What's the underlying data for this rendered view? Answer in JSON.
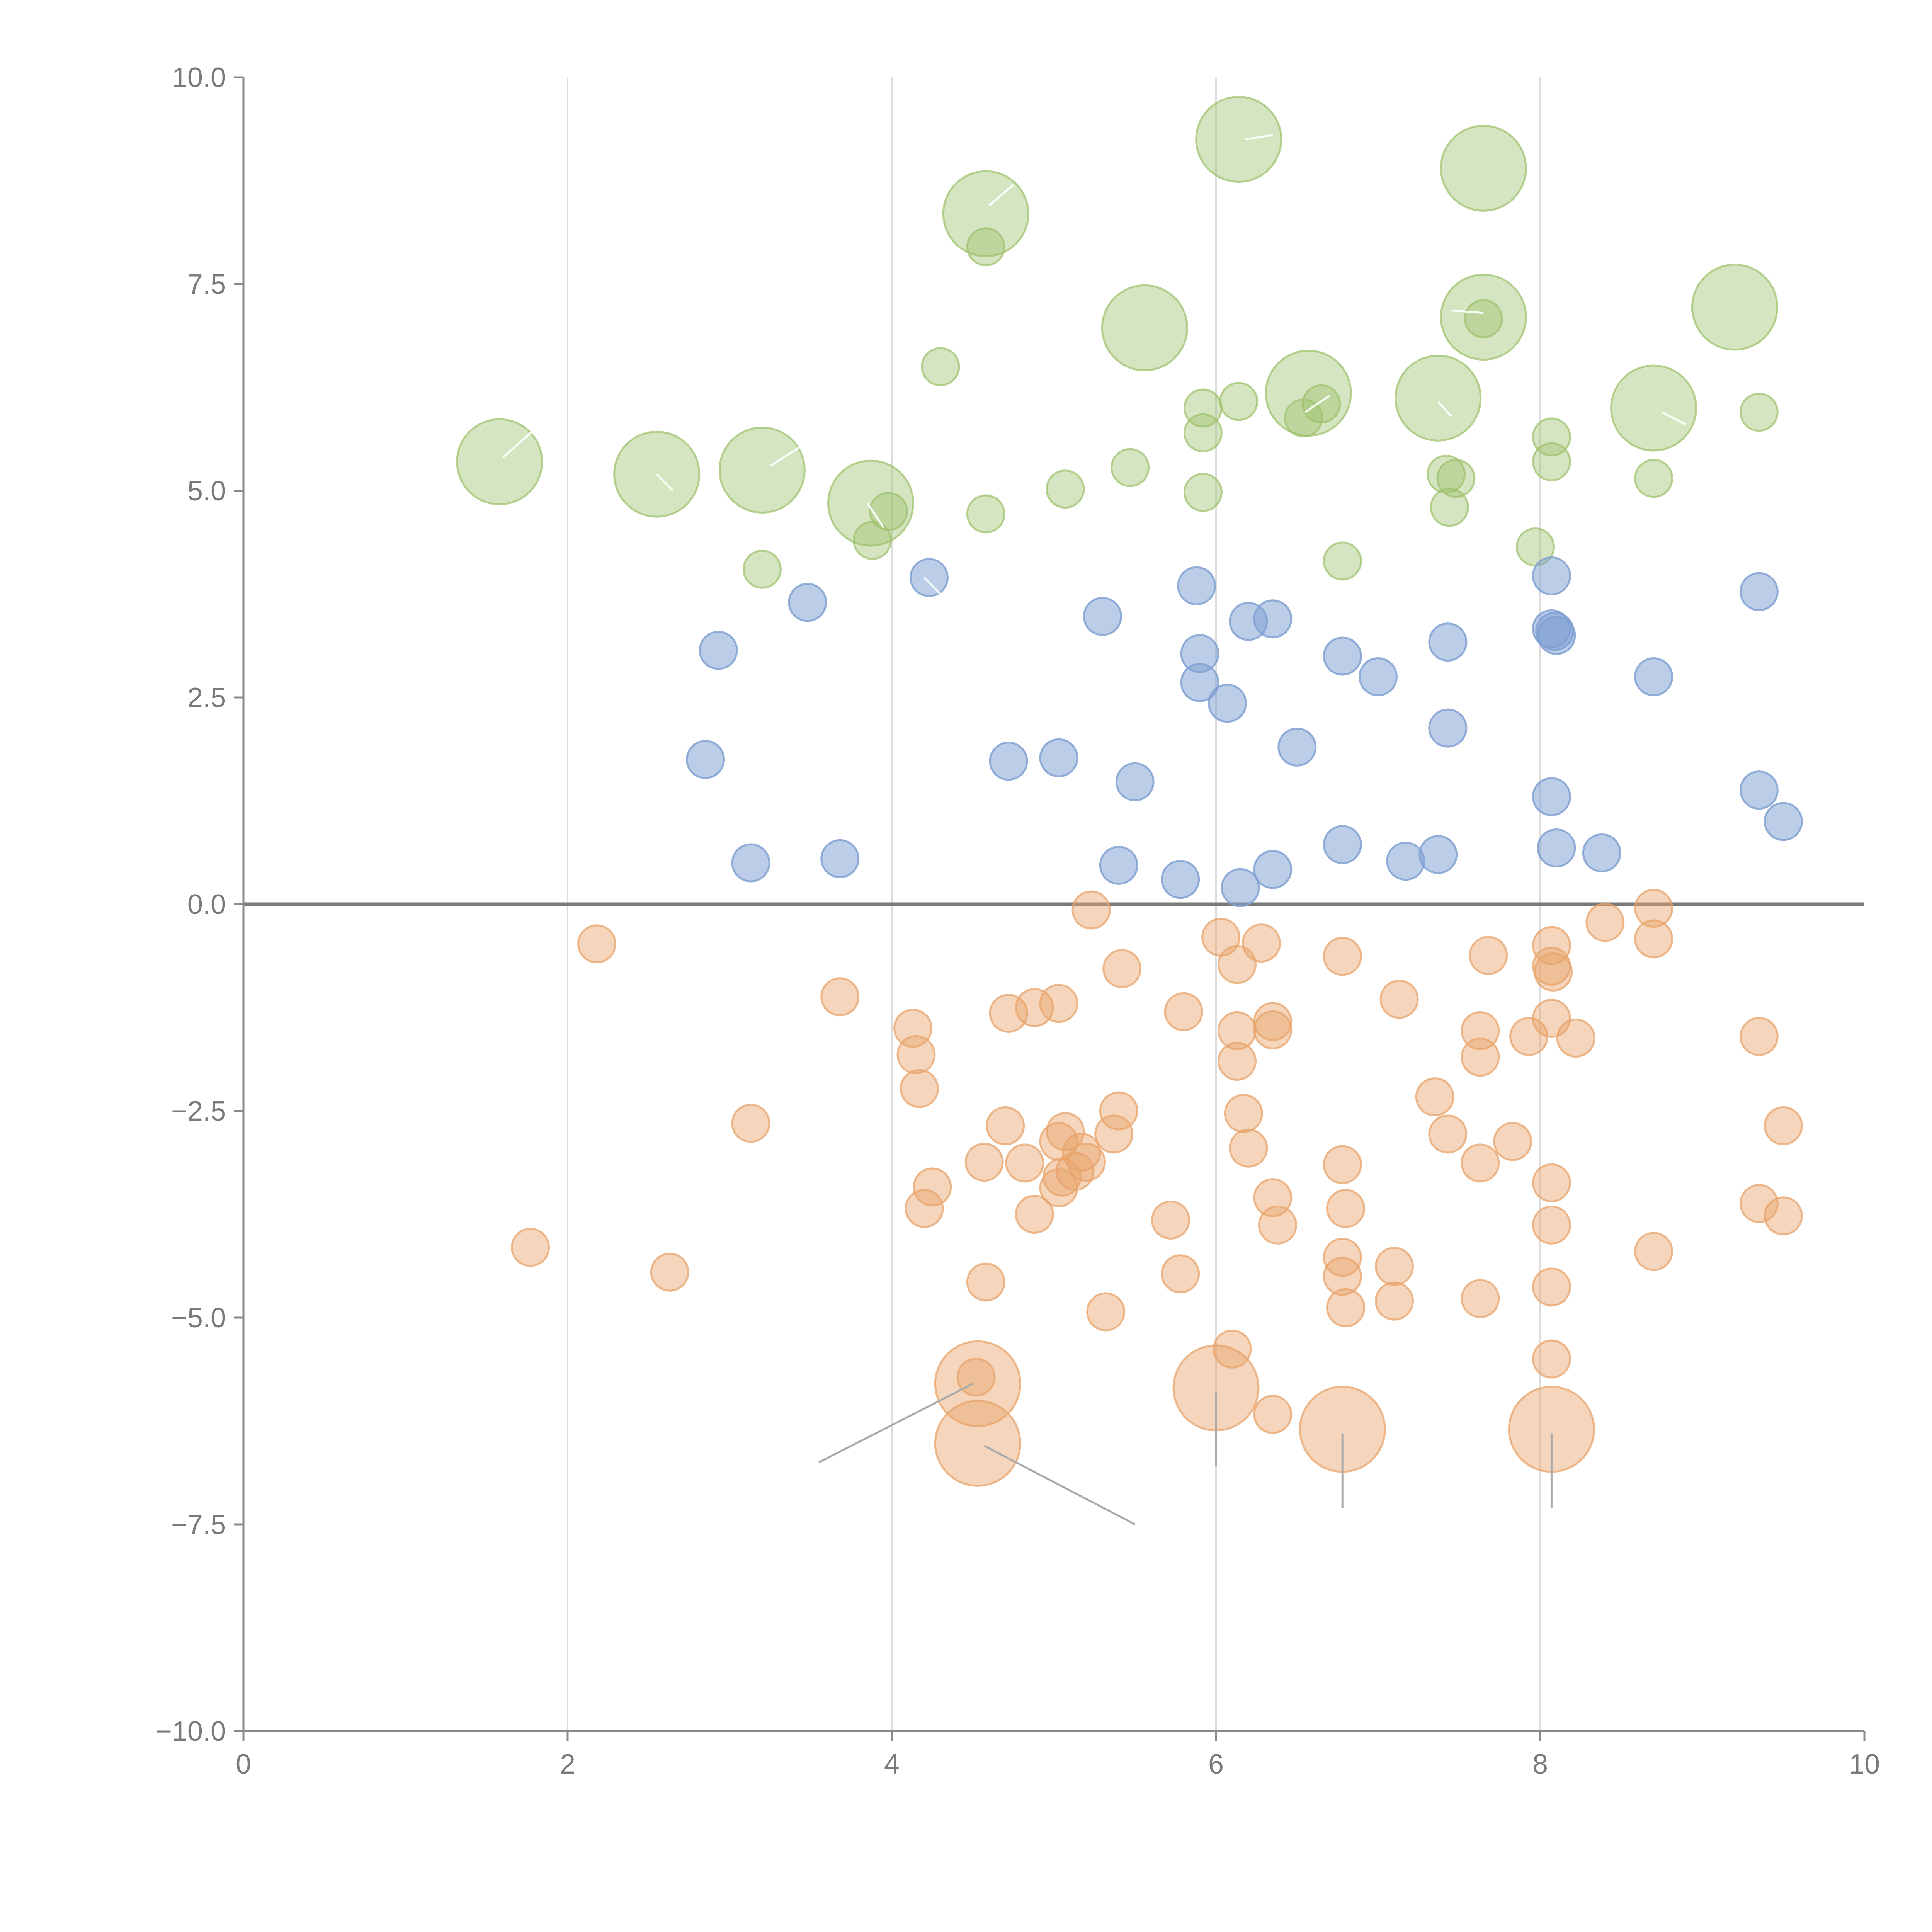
{
  "chart_data": {
    "type": "scatter",
    "title": "",
    "xlabel": "",
    "ylabel": "",
    "xlim": [
      0,
      10
    ],
    "ylim": [
      -10,
      10
    ],
    "x_ticks": [
      0,
      2,
      4,
      6,
      8,
      10
    ],
    "x_tick_labels": [
      "0",
      "2",
      "4",
      "6",
      "8",
      "10"
    ],
    "y_ticks": [
      10,
      7.5,
      5,
      2.5,
      0,
      -2.5,
      -5,
      -7.5,
      -10
    ],
    "y_tick_labels": [
      "10.0",
      "7.5",
      "5.0",
      "2.5",
      "0.0",
      "−2.5",
      "−5.0",
      "−7.5",
      "−10.0"
    ],
    "vertical_grid_at": [
      2,
      4,
      6,
      8
    ],
    "reference_line_y": 0,
    "series": [
      {
        "name": "green",
        "color": "#9dc16b",
        "opacity": 0.42,
        "points": [
          {
            "x": 1.58,
            "y": 5.35,
            "size": "large"
          },
          {
            "x": 2.55,
            "y": 5.2,
            "size": "large"
          },
          {
            "x": 3.2,
            "y": 5.25,
            "size": "large"
          },
          {
            "x": 3.2,
            "y": 4.05,
            "size": "small"
          },
          {
            "x": 3.87,
            "y": 4.85,
            "size": "large"
          },
          {
            "x": 3.88,
            "y": 4.4,
            "size": "small"
          },
          {
            "x": 3.98,
            "y": 4.75,
            "size": "small"
          },
          {
            "x": 4.3,
            "y": 6.5,
            "size": "small"
          },
          {
            "x": 4.58,
            "y": 8.35,
            "size": "large"
          },
          {
            "x": 4.58,
            "y": 7.95,
            "size": "small"
          },
          {
            "x": 4.58,
            "y": 4.72,
            "size": "small"
          },
          {
            "x": 5.07,
            "y": 5.02,
            "size": "small"
          },
          {
            "x": 5.47,
            "y": 5.28,
            "size": "small"
          },
          {
            "x": 5.56,
            "y": 6.97,
            "size": "large"
          },
          {
            "x": 5.92,
            "y": 6.0,
            "size": "small"
          },
          {
            "x": 5.92,
            "y": 5.7,
            "size": "small"
          },
          {
            "x": 5.92,
            "y": 4.98,
            "size": "small"
          },
          {
            "x": 6.14,
            "y": 9.25,
            "size": "large"
          },
          {
            "x": 6.14,
            "y": 6.08,
            "size": "small"
          },
          {
            "x": 6.54,
            "y": 5.88,
            "size": "small"
          },
          {
            "x": 6.57,
            "y": 6.18,
            "size": "large"
          },
          {
            "x": 6.65,
            "y": 6.05,
            "size": "small"
          },
          {
            "x": 6.78,
            "y": 4.15,
            "size": "small"
          },
          {
            "x": 7.37,
            "y": 6.12,
            "size": "large"
          },
          {
            "x": 7.42,
            "y": 5.2,
            "size": "small"
          },
          {
            "x": 7.48,
            "y": 5.15,
            "size": "small"
          },
          {
            "x": 7.44,
            "y": 4.8,
            "size": "small"
          },
          {
            "x": 7.65,
            "y": 8.9,
            "size": "large"
          },
          {
            "x": 7.65,
            "y": 7.1,
            "size": "large"
          },
          {
            "x": 7.65,
            "y": 7.08,
            "size": "small"
          },
          {
            "x": 7.97,
            "y": 4.32,
            "size": "small"
          },
          {
            "x": 8.07,
            "y": 5.65,
            "size": "small"
          },
          {
            "x": 8.07,
            "y": 5.35,
            "size": "small"
          },
          {
            "x": 8.7,
            "y": 6.0,
            "size": "large"
          },
          {
            "x": 8.7,
            "y": 5.15,
            "size": "small"
          },
          {
            "x": 9.2,
            "y": 7.22,
            "size": "large"
          },
          {
            "x": 9.35,
            "y": 5.95,
            "size": "small"
          }
        ]
      },
      {
        "name": "blue",
        "color": "#7ea0d2",
        "opacity": 0.52,
        "points": [
          {
            "x": 2.85,
            "y": 1.75
          },
          {
            "x": 2.93,
            "y": 3.07
          },
          {
            "x": 3.13,
            "y": 0.5
          },
          {
            "x": 3.48,
            "y": 3.65
          },
          {
            "x": 3.68,
            "y": 0.55
          },
          {
            "x": 4.23,
            "y": 3.95
          },
          {
            "x": 4.72,
            "y": 1.73
          },
          {
            "x": 5.03,
            "y": 1.77
          },
          {
            "x": 5.3,
            "y": 3.48
          },
          {
            "x": 5.4,
            "y": 0.47
          },
          {
            "x": 5.5,
            "y": 1.48
          },
          {
            "x": 5.78,
            "y": 0.3
          },
          {
            "x": 5.88,
            "y": 3.85
          },
          {
            "x": 5.9,
            "y": 3.03
          },
          {
            "x": 5.9,
            "y": 2.68
          },
          {
            "x": 6.07,
            "y": 2.43
          },
          {
            "x": 6.15,
            "y": 0.2
          },
          {
            "x": 6.2,
            "y": 3.42
          },
          {
            "x": 6.35,
            "y": 3.45
          },
          {
            "x": 6.35,
            "y": 0.42
          },
          {
            "x": 6.5,
            "y": 1.9
          },
          {
            "x": 6.78,
            "y": 3.0
          },
          {
            "x": 6.78,
            "y": 0.72
          },
          {
            "x": 7.0,
            "y": 2.75
          },
          {
            "x": 7.17,
            "y": 0.52
          },
          {
            "x": 7.37,
            "y": 0.6
          },
          {
            "x": 7.43,
            "y": 3.17
          },
          {
            "x": 7.43,
            "y": 2.13
          },
          {
            "x": 8.07,
            "y": 3.97
          },
          {
            "x": 8.07,
            "y": 3.33
          },
          {
            "x": 8.09,
            "y": 3.3
          },
          {
            "x": 8.1,
            "y": 3.25
          },
          {
            "x": 8.07,
            "y": 1.3
          },
          {
            "x": 8.1,
            "y": 0.68
          },
          {
            "x": 8.38,
            "y": 0.62
          },
          {
            "x": 8.7,
            "y": 2.75
          },
          {
            "x": 9.35,
            "y": 3.78
          },
          {
            "x": 9.35,
            "y": 1.38
          },
          {
            "x": 9.5,
            "y": 1.0
          }
        ]
      },
      {
        "name": "orange",
        "color": "#e8a36b",
        "opacity": 0.45,
        "points": [
          {
            "x": 1.77,
            "y": -4.15,
            "size": "small"
          },
          {
            "x": 2.18,
            "y": -0.48,
            "size": "small"
          },
          {
            "x": 2.63,
            "y": -4.45,
            "size": "small"
          },
          {
            "x": 3.13,
            "y": -2.65,
            "size": "small"
          },
          {
            "x": 3.68,
            "y": -1.12,
            "size": "small"
          },
          {
            "x": 4.13,
            "y": -1.5,
            "size": "small"
          },
          {
            "x": 4.15,
            "y": -1.82,
            "size": "small"
          },
          {
            "x": 4.17,
            "y": -2.23,
            "size": "small"
          },
          {
            "x": 4.2,
            "y": -3.68,
            "size": "small"
          },
          {
            "x": 4.25,
            "y": -3.42,
            "size": "small"
          },
          {
            "x": 4.52,
            "y": -5.72,
            "size": "small"
          },
          {
            "x": 4.53,
            "y": -5.8,
            "size": "large"
          },
          {
            "x": 4.53,
            "y": -6.52,
            "size": "large"
          },
          {
            "x": 4.57,
            "y": -3.12,
            "size": "small"
          },
          {
            "x": 4.58,
            "y": -4.57,
            "size": "small"
          },
          {
            "x": 4.7,
            "y": -2.68,
            "size": "small"
          },
          {
            "x": 4.72,
            "y": -1.32,
            "size": "small"
          },
          {
            "x": 4.82,
            "y": -3.13,
            "size": "small"
          },
          {
            "x": 4.88,
            "y": -1.25,
            "size": "small"
          },
          {
            "x": 4.88,
            "y": -3.75,
            "size": "small"
          },
          {
            "x": 5.03,
            "y": -1.2,
            "size": "small"
          },
          {
            "x": 5.03,
            "y": -2.87,
            "size": "small"
          },
          {
            "x": 5.03,
            "y": -3.43,
            "size": "small"
          },
          {
            "x": 5.05,
            "y": -3.3,
            "size": "small"
          },
          {
            "x": 5.07,
            "y": -2.75,
            "size": "small"
          },
          {
            "x": 5.13,
            "y": -3.23,
            "size": "small"
          },
          {
            "x": 5.17,
            "y": -3.0,
            "size": "small"
          },
          {
            "x": 5.2,
            "y": -3.12,
            "size": "small"
          },
          {
            "x": 5.23,
            "y": -0.07,
            "size": "small"
          },
          {
            "x": 5.32,
            "y": -4.93,
            "size": "small"
          },
          {
            "x": 5.37,
            "y": -2.78,
            "size": "small"
          },
          {
            "x": 5.4,
            "y": -2.5,
            "size": "small"
          },
          {
            "x": 5.42,
            "y": -0.78,
            "size": "small"
          },
          {
            "x": 5.72,
            "y": -3.82,
            "size": "small"
          },
          {
            "x": 5.78,
            "y": -4.47,
            "size": "small"
          },
          {
            "x": 5.8,
            "y": -1.3,
            "size": "small"
          },
          {
            "x": 6.0,
            "y": -5.85,
            "size": "large"
          },
          {
            "x": 6.03,
            "y": -0.4,
            "size": "small"
          },
          {
            "x": 6.1,
            "y": -5.38,
            "size": "small"
          },
          {
            "x": 6.13,
            "y": -0.73,
            "size": "small"
          },
          {
            "x": 6.13,
            "y": -1.53,
            "size": "small"
          },
          {
            "x": 6.13,
            "y": -1.9,
            "size": "small"
          },
          {
            "x": 6.17,
            "y": -2.53,
            "size": "small"
          },
          {
            "x": 6.2,
            "y": -2.95,
            "size": "small"
          },
          {
            "x": 6.28,
            "y": -0.47,
            "size": "small"
          },
          {
            "x": 6.35,
            "y": -1.42,
            "size": "small"
          },
          {
            "x": 6.35,
            "y": -1.52,
            "size": "small"
          },
          {
            "x": 6.35,
            "y": -3.55,
            "size": "small"
          },
          {
            "x": 6.35,
            "y": -6.17,
            "size": "small"
          },
          {
            "x": 6.38,
            "y": -3.88,
            "size": "small"
          },
          {
            "x": 6.78,
            "y": -0.63,
            "size": "small"
          },
          {
            "x": 6.78,
            "y": -3.15,
            "size": "small"
          },
          {
            "x": 6.8,
            "y": -3.68,
            "size": "small"
          },
          {
            "x": 6.78,
            "y": -4.27,
            "size": "small"
          },
          {
            "x": 6.78,
            "y": -4.5,
            "size": "small"
          },
          {
            "x": 6.8,
            "y": -4.88,
            "size": "small"
          },
          {
            "x": 6.78,
            "y": -6.35,
            "size": "large"
          },
          {
            "x": 7.1,
            "y": -4.38,
            "size": "small"
          },
          {
            "x": 7.1,
            "y": -4.8,
            "size": "small"
          },
          {
            "x": 7.13,
            "y": -1.15,
            "size": "small"
          },
          {
            "x": 7.35,
            "y": -2.33,
            "size": "small"
          },
          {
            "x": 7.43,
            "y": -2.78,
            "size": "small"
          },
          {
            "x": 7.63,
            "y": -1.53,
            "size": "small"
          },
          {
            "x": 7.63,
            "y": -1.85,
            "size": "small"
          },
          {
            "x": 7.63,
            "y": -3.13,
            "size": "small"
          },
          {
            "x": 7.63,
            "y": -4.77,
            "size": "small"
          },
          {
            "x": 7.68,
            "y": -0.62,
            "size": "small"
          },
          {
            "x": 7.83,
            "y": -2.87,
            "size": "small"
          },
          {
            "x": 7.93,
            "y": -1.6,
            "size": "small"
          },
          {
            "x": 8.07,
            "y": -0.5,
            "size": "small"
          },
          {
            "x": 8.07,
            "y": -0.75,
            "size": "small"
          },
          {
            "x": 8.08,
            "y": -0.82,
            "size": "small"
          },
          {
            "x": 8.07,
            "y": -1.38,
            "size": "small"
          },
          {
            "x": 8.07,
            "y": -3.37,
            "size": "small"
          },
          {
            "x": 8.07,
            "y": -3.88,
            "size": "small"
          },
          {
            "x": 8.07,
            "y": -4.63,
            "size": "small"
          },
          {
            "x": 8.07,
            "y": -5.5,
            "size": "small"
          },
          {
            "x": 8.07,
            "y": -6.35,
            "size": "large"
          },
          {
            "x": 8.22,
            "y": -1.62,
            "size": "small"
          },
          {
            "x": 8.4,
            "y": -0.22,
            "size": "small"
          },
          {
            "x": 8.7,
            "y": -0.05,
            "size": "small"
          },
          {
            "x": 8.7,
            "y": -0.42,
            "size": "small"
          },
          {
            "x": 8.7,
            "y": -4.2,
            "size": "small"
          },
          {
            "x": 9.35,
            "y": -1.6,
            "size": "small"
          },
          {
            "x": 9.35,
            "y": -3.62,
            "size": "small"
          },
          {
            "x": 9.5,
            "y": -2.68,
            "size": "small"
          },
          {
            "x": 9.5,
            "y": -3.77,
            "size": "small"
          }
        ]
      }
    ],
    "leader_lines_gray": [
      {
        "from": [
          4.5,
          -5.8
        ],
        "to": [
          3.55,
          -6.75
        ]
      },
      {
        "from": [
          4.57,
          -6.55
        ],
        "to": [
          5.5,
          -7.5
        ]
      },
      {
        "from": [
          6.0,
          -5.9
        ],
        "to": [
          6.0,
          -6.8
        ]
      },
      {
        "from": [
          6.78,
          -6.4
        ],
        "to": [
          6.78,
          -7.3
        ]
      },
      {
        "from": [
          8.07,
          -6.4
        ],
        "to": [
          8.07,
          -7.3
        ]
      }
    ],
    "leader_lines_white": [
      {
        "from": [
          1.6,
          5.4
        ],
        "to": [
          1.8,
          5.75
        ]
      },
      {
        "from": [
          2.65,
          5.0
        ],
        "to": [
          2.55,
          5.2
        ]
      },
      {
        "from": [
          3.25,
          5.3
        ],
        "to": [
          3.45,
          5.55
        ]
      },
      {
        "from": [
          3.95,
          4.55
        ],
        "to": [
          3.85,
          4.85
        ]
      },
      {
        "from": [
          4.6,
          8.45
        ],
        "to": [
          4.75,
          8.7
        ]
      },
      {
        "from": [
          4.3,
          3.75
        ],
        "to": [
          4.2,
          3.95
        ]
      },
      {
        "from": [
          6.18,
          9.25
        ],
        "to": [
          6.35,
          9.3
        ]
      },
      {
        "from": [
          6.55,
          5.95
        ],
        "to": [
          6.7,
          6.15
        ]
      },
      {
        "from": [
          7.37,
          6.08
        ],
        "to": [
          7.45,
          5.9
        ]
      },
      {
        "from": [
          7.65,
          7.15
        ],
        "to": [
          7.45,
          7.18
        ]
      },
      {
        "from": [
          8.75,
          5.95
        ],
        "to": [
          8.9,
          5.8
        ]
      }
    ],
    "annotations": []
  }
}
